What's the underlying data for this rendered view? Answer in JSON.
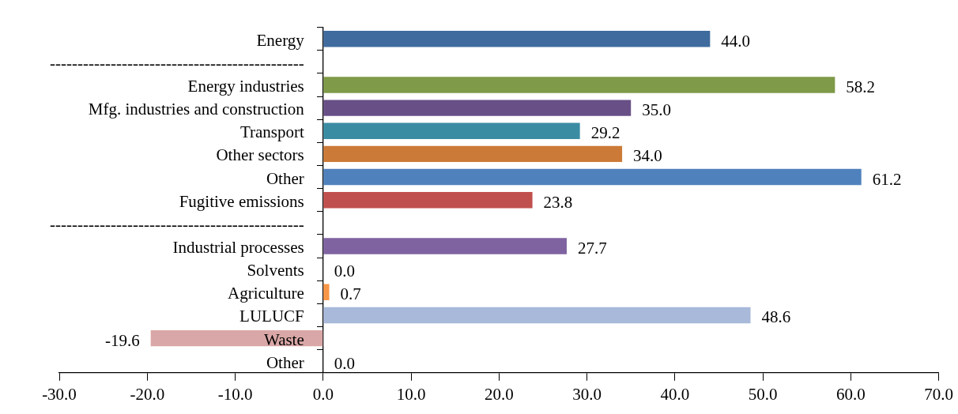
{
  "chart_data": {
    "type": "bar",
    "orientation": "horizontal",
    "categories": [
      "Energy",
      "----------------------------------------------",
      "Energy industries",
      "Mfg. industries and construction",
      "Transport",
      "Other sectors",
      "Other",
      "Fugitive emissions",
      "----------------------------------------------",
      "Industrial processes",
      "Solvents",
      "Agriculture",
      "LULUCF",
      "Waste",
      "Other"
    ],
    "values": [
      44.0,
      null,
      58.2,
      35.0,
      29.2,
      34.0,
      61.2,
      23.8,
      null,
      27.7,
      0.0,
      0.7,
      48.6,
      -19.6,
      0.0
    ],
    "value_labels": [
      "44.0",
      null,
      "58.2",
      "35.0",
      "29.2",
      "34.0",
      "61.2",
      "23.8",
      null,
      "27.7",
      "0.0",
      "0.7",
      "48.6",
      "-19.6",
      "0.0"
    ],
    "colors": [
      "#3f6b9e",
      null,
      "#7f9a48",
      "#684f86",
      "#3a8ca3",
      "#cc7a37",
      null,
      "#c0504d",
      null,
      "#7f63a1",
      null,
      "#f79646",
      "#a8b9d9",
      "#d9a7a7",
      null
    ],
    "xlim": [
      -30,
      70
    ],
    "xticks": [
      {
        "value": -30,
        "label": "-30.0"
      },
      {
        "value": -20,
        "label": "-20.0"
      },
      {
        "value": -10,
        "label": "-10.0"
      },
      {
        "value": 0,
        "label": "0.0"
      },
      {
        "value": 10,
        "label": "10.0"
      },
      {
        "value": 20,
        "label": "20.0"
      },
      {
        "value": 30,
        "label": "30.0"
      },
      {
        "value": 40,
        "label": "40.0"
      },
      {
        "value": 50,
        "label": "50.0"
      },
      {
        "value": 60,
        "label": "60.0"
      },
      {
        "value": 70,
        "label": "70.0"
      }
    ],
    "grid": false,
    "legend": false
  }
}
